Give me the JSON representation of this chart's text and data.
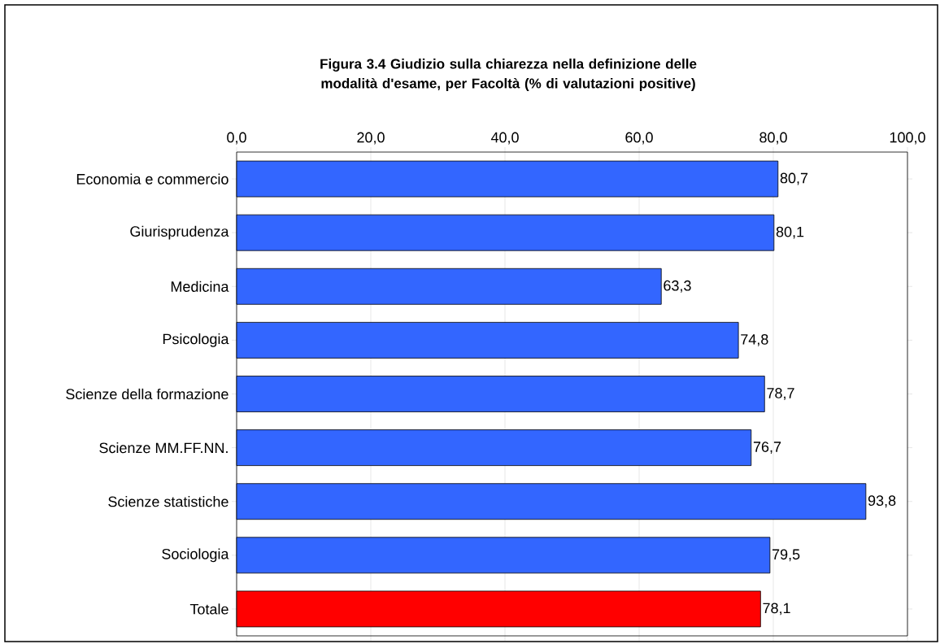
{
  "chart_data": {
    "type": "bar",
    "orientation": "horizontal",
    "title": "Figura 3.4 Giudizio sulla chiarezza nella definizione delle modalità d'esame, per Facoltà (% di valutazioni positive)",
    "categories": [
      "Economia e commercio",
      "Giurisprudenza",
      "Medicina",
      "Psicologia",
      "Scienze della formazione",
      "Scienze MM.FF.NN.",
      "Scienze statistiche",
      "Sociologia",
      "Totale"
    ],
    "values": [
      80.7,
      80.1,
      63.3,
      74.8,
      78.7,
      76.7,
      93.8,
      79.5,
      78.1
    ],
    "colors": [
      "#3366ff",
      "#3366ff",
      "#3366ff",
      "#3366ff",
      "#3366ff",
      "#3366ff",
      "#3366ff",
      "#3366ff",
      "#ff0000"
    ],
    "value_labels": [
      "80,7",
      "80,1",
      "63,3",
      "74,8",
      "78,7",
      "76,7",
      "93,8",
      "79,5",
      "78,1"
    ],
    "xlim": [
      0,
      100
    ],
    "xticks": [
      {
        "value": 0,
        "label": "0,0"
      },
      {
        "value": 20,
        "label": "20,0"
      },
      {
        "value": 40,
        "label": "40,0"
      },
      {
        "value": 60,
        "label": "60,0"
      },
      {
        "value": 80,
        "label": "80,0"
      },
      {
        "value": 100,
        "label": "100,0"
      }
    ],
    "grid": "x"
  }
}
